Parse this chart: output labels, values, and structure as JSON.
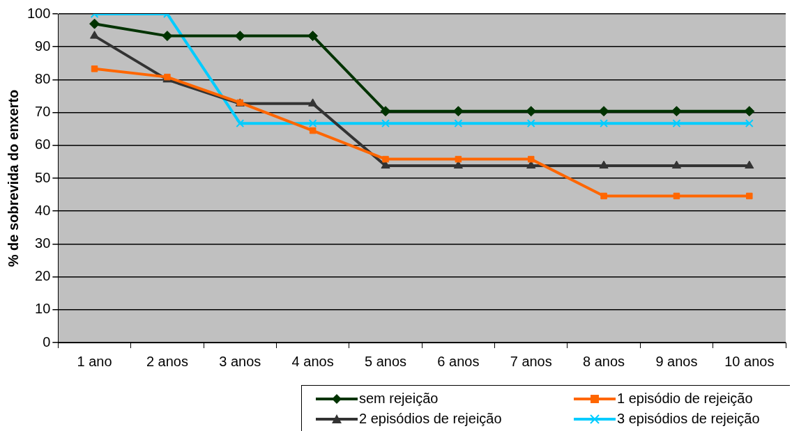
{
  "chart_data": {
    "type": "line",
    "ylabel": "% de sobrevida do enxerto",
    "categories": [
      "1 ano",
      "2 anos",
      "3 anos",
      "4 anos",
      "5 anos",
      "6 anos",
      "7 anos",
      "8 anos",
      "9 anos",
      "10 anos"
    ],
    "ylim": [
      0,
      100
    ],
    "yticks": [
      0,
      10,
      20,
      30,
      40,
      50,
      60,
      70,
      80,
      90,
      100
    ],
    "grid": "y",
    "legend": "bottom right",
    "series": [
      {
        "name": "sem rejeição",
        "color": "#003300",
        "marker": "diamond",
        "values": [
          97,
          93.3,
          93.3,
          93.3,
          70.4,
          70.4,
          70.4,
          70.4,
          70.4,
          70.4
        ]
      },
      {
        "name": "1 episódio de rejeição",
        "color": "#ff6600",
        "marker": "square",
        "values": [
          83.3,
          80.8,
          73,
          64.5,
          55.8,
          55.8,
          55.8,
          44.6,
          44.6,
          44.6
        ]
      },
      {
        "name": "2 episódios de rejeição",
        "color": "#333333",
        "marker": "triangle",
        "values": [
          93.3,
          80,
          72.7,
          72.7,
          53.8,
          53.8,
          53.8,
          53.8,
          53.8,
          53.8
        ]
      },
      {
        "name": "3 episódios de rejeição",
        "color": "#00ccff",
        "marker": "cross",
        "values": [
          100,
          100,
          66.7,
          66.7,
          66.7,
          66.7,
          66.7,
          66.7,
          66.7,
          66.7
        ]
      }
    ]
  }
}
